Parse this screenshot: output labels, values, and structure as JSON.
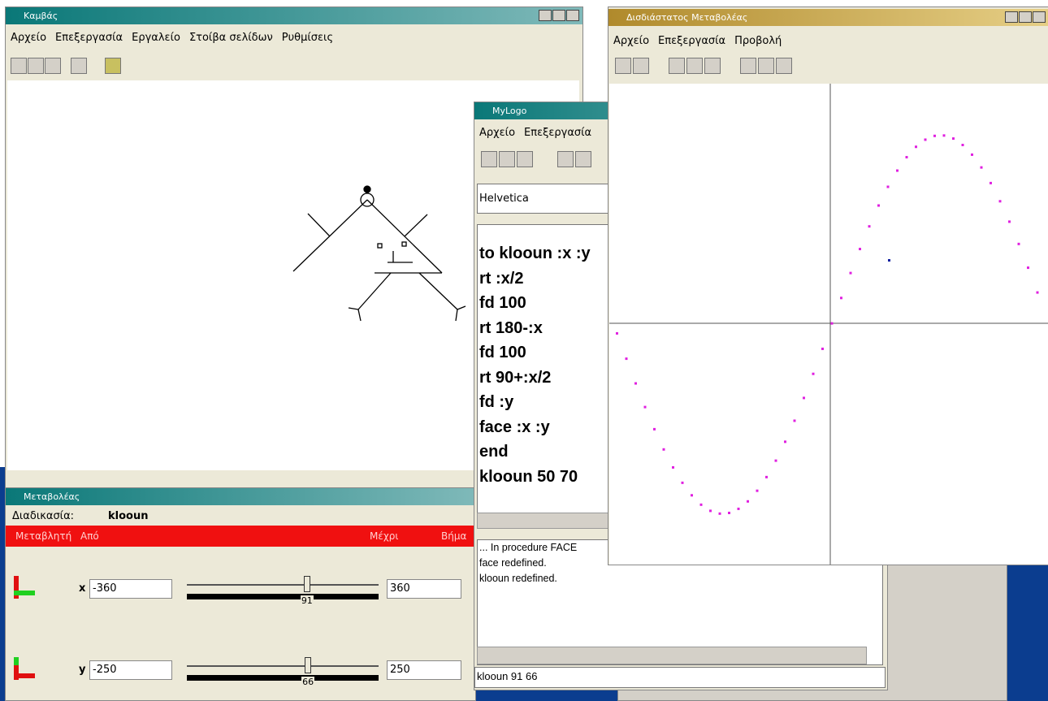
{
  "canvas_window": {
    "title": "Καμβάς",
    "menu": [
      "Αρχείο",
      "Επεξεργασία",
      "Εργαλείο",
      "Στοίβα σελίδων",
      "Ρυθμίσεις"
    ]
  },
  "variator_window": {
    "title": "Μεταβολέας",
    "procedure_label": "Διαδικασία:",
    "procedure": "klooun",
    "columns": [
      "Μεταβλητή",
      "Από",
      "Μέχρι",
      "Βήμα"
    ],
    "rows": [
      {
        "name": "x",
        "from": -360,
        "value": 91,
        "to": 360
      },
      {
        "name": "y",
        "from": -250,
        "value": 66,
        "to": 250
      }
    ]
  },
  "logo_window": {
    "title": "MyLogo",
    "menu": [
      "Αρχείο",
      "Επεξεργασία"
    ],
    "font": "Helvetica",
    "code": [
      "to klooun :x :y",
      "rt :x/2",
      "fd 100",
      "rt 180-:x",
      "fd 100",
      "rt 90+:x/2",
      "fd :y",
      "face :x :y",
      "end",
      "klooun 50 70"
    ],
    "output": [
      "... In procedure FACE",
      "face redefined.",
      "klooun redefined."
    ],
    "command": "klooun 91 66"
  },
  "graph_window": {
    "title": "Δισδιάστατος Μεταβολέας",
    "menu": [
      "Αρχείο",
      "Επεξεργασία",
      "Προβολή"
    ]
  }
}
